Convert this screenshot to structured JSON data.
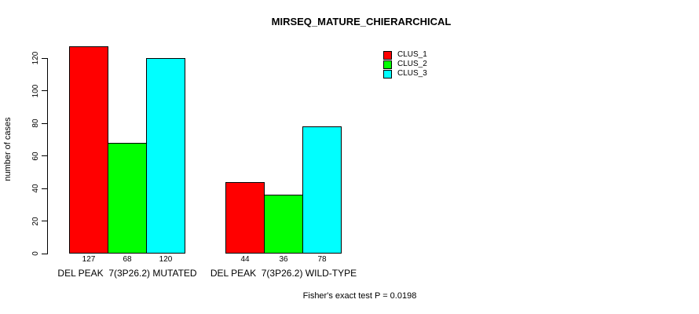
{
  "chart_data": {
    "type": "bar",
    "title": "MIRSEQ_MATURE_CHIERARCHICAL",
    "ylabel": "number of cases",
    "xlabel": "",
    "categories": [
      "DEL PEAK  7(3P26.2) MUTATED",
      "DEL PEAK  7(3P26.2) WILD-TYPE"
    ],
    "series": [
      {
        "name": "CLUS_1",
        "color": "#FF0000",
        "values": [
          127,
          44
        ]
      },
      {
        "name": "CLUS_2",
        "color": "#00FF00",
        "values": [
          68,
          36
        ]
      },
      {
        "name": "CLUS_3",
        "color": "#00FFFF",
        "values": [
          120,
          78
        ]
      }
    ],
    "bar_value_labels": [
      [
        127,
        68,
        120
      ],
      [
        44,
        36,
        78
      ]
    ],
    "yticks": [
      0,
      20,
      40,
      60,
      80,
      100,
      120
    ],
    "ylim": [
      0,
      120
    ],
    "grid": false,
    "legend_position": "top-right",
    "annotation": "Fisher's exact test P = 0.0198"
  }
}
